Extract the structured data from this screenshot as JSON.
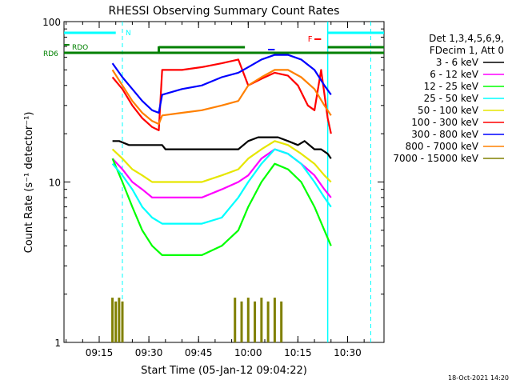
{
  "chart_data": {
    "type": "line",
    "title": "RHESSI Observing Summary Count Rates",
    "xlabel": "Start Time (05-Jan-12 09:04:22)",
    "ylabel": "Count Rate (s⁻¹ detector⁻¹)",
    "y_scale": "log",
    "ylim": [
      1,
      100
    ],
    "xlim": [
      "09:04:22",
      "10:41:00"
    ],
    "x_ticks": [
      "09:15",
      "09:30",
      "09:45",
      "10:00",
      "10:15",
      "10:30"
    ],
    "y_ticks": [
      "1",
      "10",
      "100"
    ],
    "timestamp": "18-Oct-2021 14:20",
    "legend": {
      "placement": "right",
      "header": [
        "Det 1,3,4,5,6,9,",
        "FDecim 1, Att 0"
      ]
    },
    "flags": {
      "rd6_label": "RD6",
      "rdo_label": "RDO",
      "n_label": "N",
      "f_label": "F"
    },
    "series": [
      {
        "name": "3 - 6 keV",
        "color": "#000000",
        "x": [
          "09:19:00",
          "09:21:00",
          "09:24:00",
          "09:27:00",
          "09:31:00",
          "09:34:00",
          "09:35:00",
          "09:40:00",
          "09:45:00",
          "09:50:00",
          "09:54:00",
          "09:57:00",
          "10:00:00",
          "10:03:00",
          "10:06:00",
          "10:09:00",
          "10:12:00",
          "10:15:00",
          "10:17:00",
          "10:20:00",
          "10:22:00",
          "10:24:00",
          "10:25:00"
        ],
        "values": [
          18,
          18,
          17,
          17,
          17,
          17,
          16,
          16,
          16,
          16,
          16,
          16,
          18,
          19,
          19,
          19,
          18,
          17,
          18,
          16,
          16,
          15,
          14
        ]
      },
      {
        "name": "6 - 12 keV",
        "color": "#ff00ff",
        "x": [
          "09:19:00",
          "09:22:00",
          "09:25:00",
          "09:28:00",
          "09:31:00",
          "09:34:00",
          "09:40:00",
          "09:46:00",
          "09:52:00",
          "09:57:00",
          "10:00:00",
          "10:04:00",
          "10:08:00",
          "10:12:00",
          "10:16:00",
          "10:20:00",
          "10:23:00",
          "10:25:00"
        ],
        "values": [
          14,
          12,
          10,
          9,
          8,
          8,
          8,
          8,
          9,
          10,
          11,
          14,
          16,
          15,
          13,
          11,
          9,
          8
        ]
      },
      {
        "name": "12 - 25 keV",
        "color": "#00ff00",
        "x": [
          "09:19:00",
          "09:22:00",
          "09:25:00",
          "09:28:00",
          "09:31:00",
          "09:34:00",
          "09:40:00",
          "09:46:00",
          "09:52:00",
          "09:57:00",
          "10:00:00",
          "10:04:00",
          "10:08:00",
          "10:12:00",
          "10:16:00",
          "10:20:00",
          "10:23:00",
          "10:25:00"
        ],
        "values": [
          14,
          10,
          7,
          5,
          4,
          3.5,
          3.5,
          3.5,
          4,
          5,
          7,
          10,
          13,
          12,
          10,
          7,
          5,
          4
        ]
      },
      {
        "name": "25 - 50 keV",
        "color": "#00ffff",
        "x": [
          "09:19:00",
          "09:22:00",
          "09:25:00",
          "09:28:00",
          "09:31:00",
          "09:34:00",
          "09:40:00",
          "09:46:00",
          "09:52:00",
          "09:57:00",
          "10:00:00",
          "10:04:00",
          "10:08:00",
          "10:12:00",
          "10:16:00",
          "10:20:00",
          "10:23:00",
          "10:25:00"
        ],
        "values": [
          13,
          11,
          9,
          7,
          6,
          5.5,
          5.5,
          5.5,
          6,
          8,
          10,
          13,
          16,
          15,
          13,
          10,
          8,
          7
        ]
      },
      {
        "name": "50 - 100 keV",
        "color": "#e6e600",
        "x": [
          "09:19:00",
          "09:22:00",
          "09:25:00",
          "09:28:00",
          "09:31:00",
          "09:34:00",
          "09:40:00",
          "09:46:00",
          "09:52:00",
          "09:57:00",
          "10:00:00",
          "10:04:00",
          "10:08:00",
          "10:12:00",
          "10:16:00",
          "10:20:00",
          "10:23:00",
          "10:25:00"
        ],
        "values": [
          16,
          14,
          12,
          11,
          10,
          10,
          10,
          10,
          11,
          12,
          14,
          16,
          18,
          17,
          15,
          13,
          11,
          10
        ]
      },
      {
        "name": "100 - 300 keV",
        "color": "#ff0000",
        "x": [
          "09:19:00",
          "09:22:00",
          "09:25:00",
          "09:28:00",
          "09:31:00",
          "09:33:00",
          "09:34:00",
          "09:40:00",
          "09:46:00",
          "09:52:00",
          "09:57:00",
          "10:00:00",
          "10:04:00",
          "10:08:00",
          "10:12:00",
          "10:15:00",
          "10:18:00",
          "10:20:00",
          "10:22:00",
          "10:24:00",
          "10:25:00"
        ],
        "values": [
          45,
          38,
          30,
          25,
          22,
          21,
          50,
          50,
          52,
          55,
          58,
          40,
          44,
          48,
          46,
          40,
          30,
          28,
          50,
          25,
          20
        ]
      },
      {
        "name": "300 - 800 keV",
        "color": "#0000ff",
        "x": [
          "09:19:00",
          "09:22:00",
          "09:25:00",
          "09:28:00",
          "09:31:00",
          "09:33:00",
          "09:34:00",
          "09:40:00",
          "09:46:00",
          "09:52:00",
          "09:57:00",
          "10:00:00",
          "10:04:00",
          "10:08:00",
          "10:12:00",
          "10:16:00",
          "10:20:00",
          "10:23:00",
          "10:25:00"
        ],
        "values": [
          55,
          45,
          38,
          32,
          28,
          27,
          35,
          38,
          40,
          45,
          48,
          52,
          58,
          62,
          62,
          58,
          50,
          40,
          35
        ]
      },
      {
        "name": "800 - 7000 keV",
        "color": "#ff8000",
        "x": [
          "09:19:00",
          "09:22:00",
          "09:25:00",
          "09:28:00",
          "09:31:00",
          "09:33:00",
          "09:34:00",
          "09:40:00",
          "09:46:00",
          "09:52:00",
          "09:57:00",
          "10:00:00",
          "10:04:00",
          "10:08:00",
          "10:12:00",
          "10:16:00",
          "10:20:00",
          "10:23:00",
          "10:25:00"
        ],
        "values": [
          50,
          40,
          32,
          27,
          24,
          23,
          26,
          27,
          28,
          30,
          32,
          40,
          45,
          50,
          50,
          45,
          38,
          30,
          26
        ]
      },
      {
        "name": "7000 - 15000 keV",
        "color": "#808000",
        "x": [
          "09:19:00",
          "09:20:00",
          "09:21:00",
          "09:22:00",
          "09:56:00",
          "09:58:00",
          "10:00:00",
          "10:02:00",
          "10:04:00",
          "10:06:00",
          "10:08:00",
          "10:10:00"
        ],
        "values": [
          1.6,
          1.5,
          1.6,
          1.5,
          1.6,
          1.5,
          1.6,
          1.5,
          1.6,
          1.5,
          1.6,
          1.5
        ]
      }
    ]
  }
}
